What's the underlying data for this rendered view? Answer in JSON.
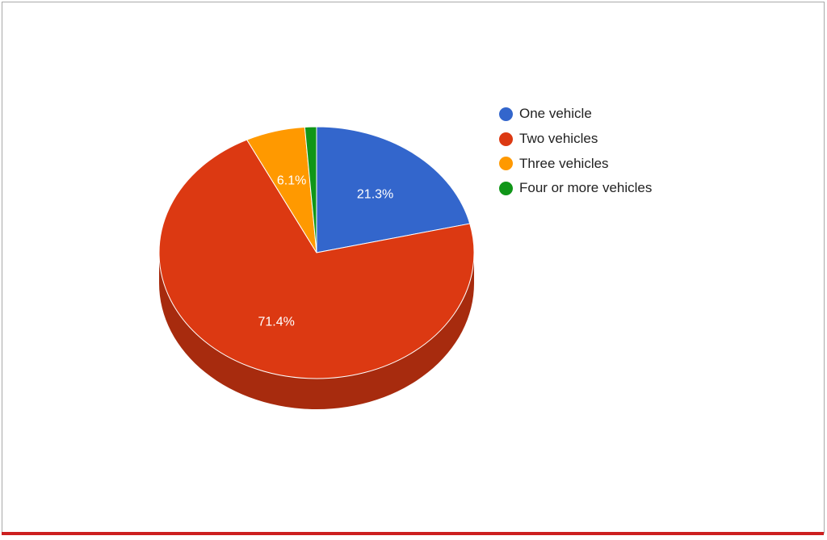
{
  "chart_data": {
    "type": "pie",
    "title": "",
    "three_d": true,
    "legend_position": "right",
    "slices": [
      {
        "label": "One vehicle",
        "value": 21.3,
        "display": "21.3%",
        "color": "#3366cc"
      },
      {
        "label": "Two vehicles",
        "value": 71.4,
        "display": "71.4%",
        "color": "#dc3912"
      },
      {
        "label": "Three vehicles",
        "value": 6.1,
        "display": "6.1%",
        "color": "#ff9900"
      },
      {
        "label": "Four or more vehicles",
        "value": 1.2,
        "display": "",
        "color": "#109618"
      }
    ]
  },
  "theme": {
    "border_color": "#a9a9a9",
    "bottom_bar_color": "#cc1f1f"
  }
}
